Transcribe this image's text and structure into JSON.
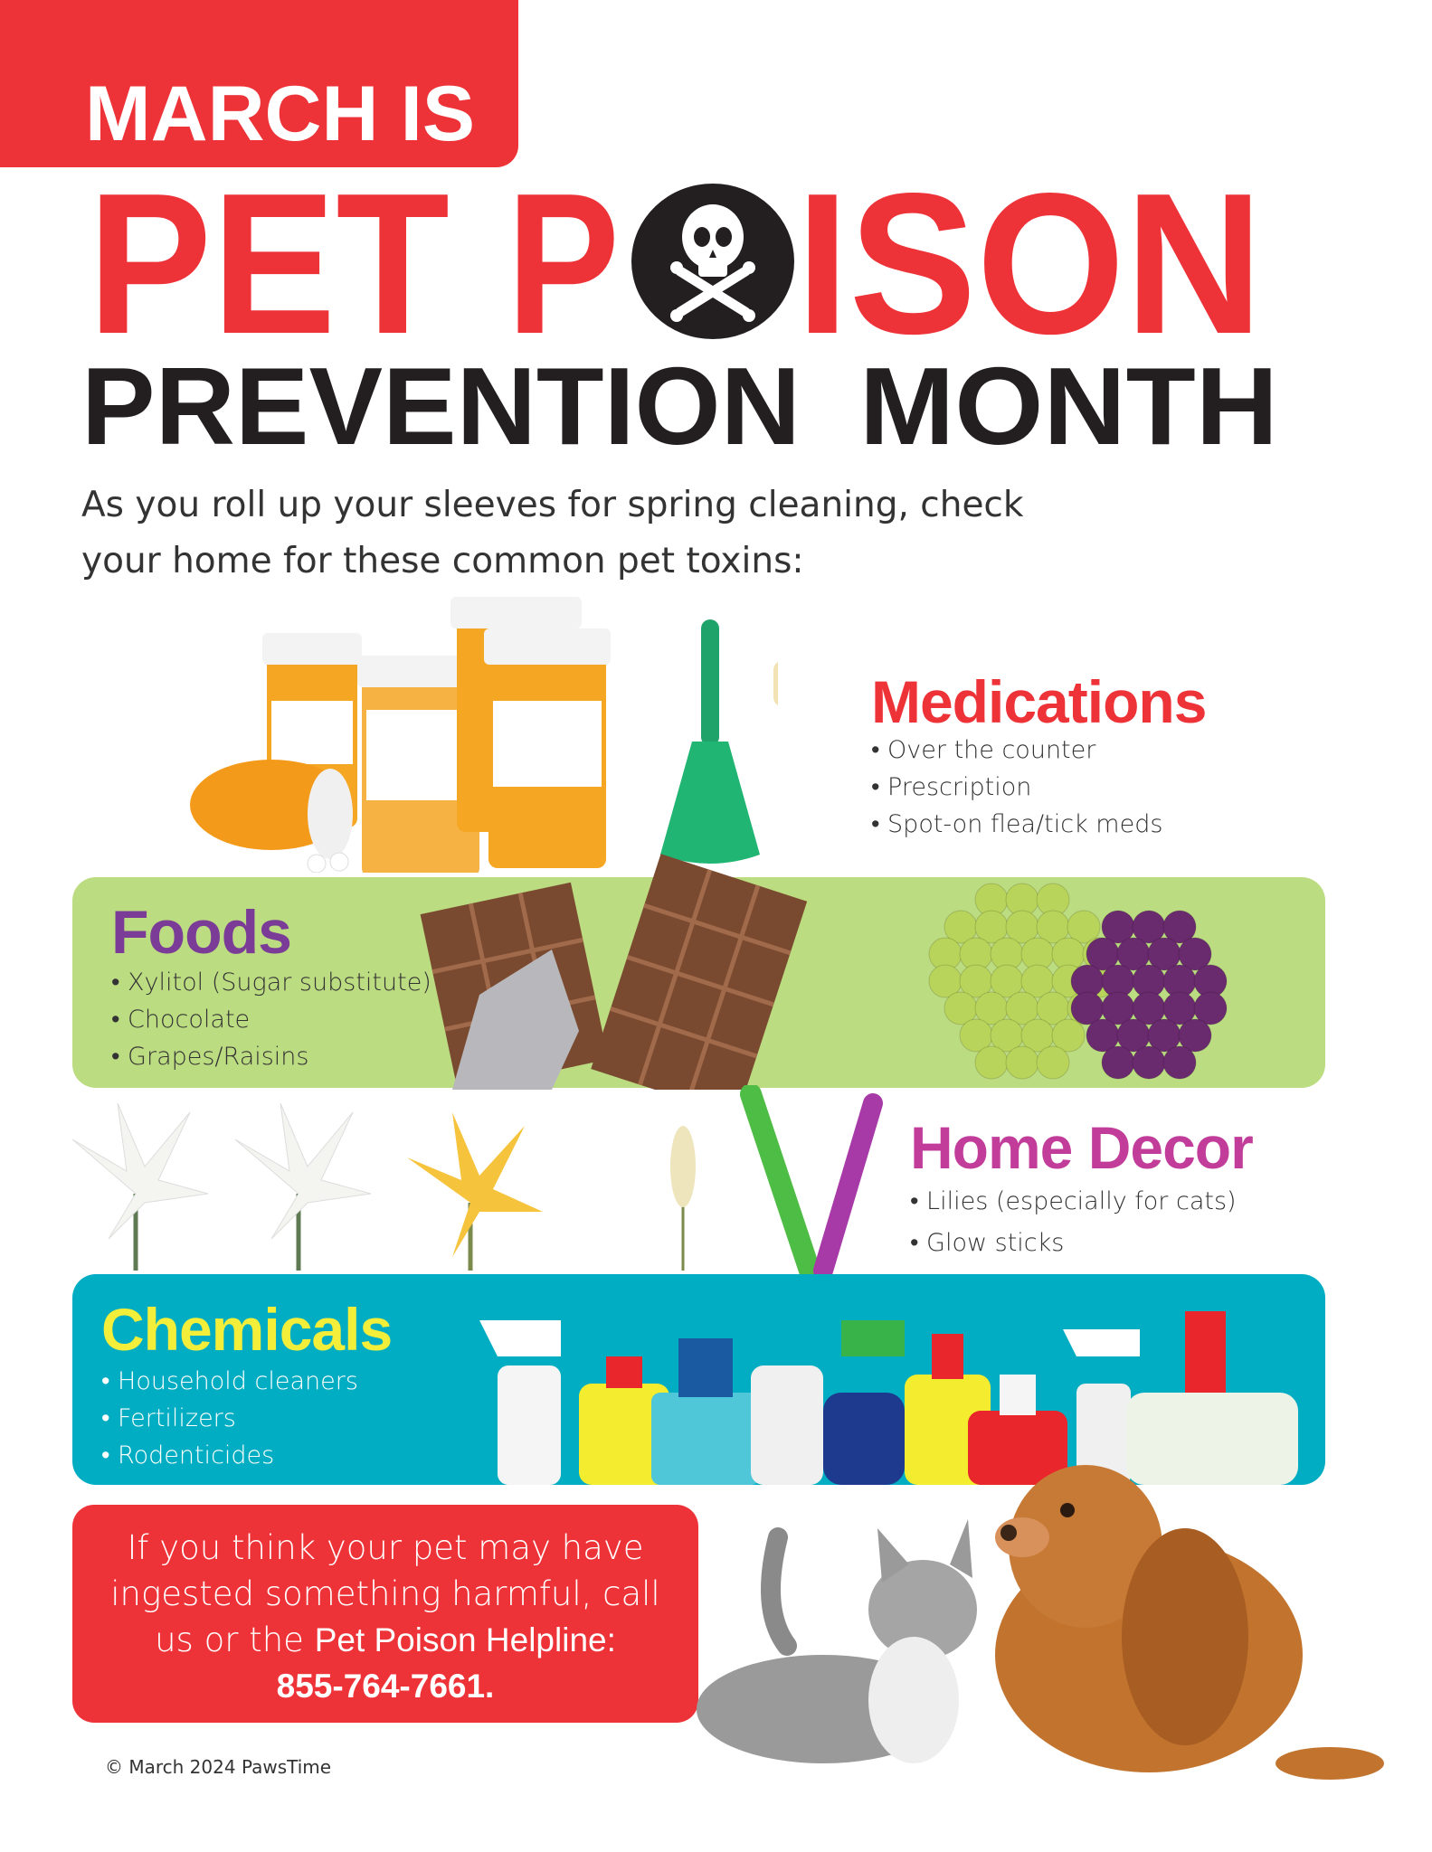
{
  "header": {
    "kicker": "MARCH IS",
    "title_word1": "PET",
    "title_word2_prefix": "P",
    "title_word2_suffix": "ISON",
    "subtitle_word1": "PREVENTION",
    "subtitle_word2": "MONTH",
    "skull_icon": "skull-crossbones-icon"
  },
  "intro": {
    "line1": "As you roll up your sleeves for spring cleaning, check",
    "line2": "your home for these common pet toxins:"
  },
  "categories": {
    "medications": {
      "title": "Medications",
      "items": [
        "Over the counter",
        "Prescription",
        "Spot-on flea/tick meds"
      ],
      "color": "#ee3338"
    },
    "foods": {
      "title": "Foods",
      "items": [
        "Xylitol (Sugar substitute)",
        "Chocolate",
        "Grapes/Raisins"
      ],
      "color": "#7b3c98",
      "band_color": "#bcdc82"
    },
    "home_decor": {
      "title": "Home Decor",
      "items": [
        "Lilies (especially for cats)",
        "Glow sticks"
      ],
      "color": "#c23c9a"
    },
    "chemicals": {
      "title": "Chemicals",
      "items": [
        "Household cleaners",
        "Fertilizers",
        "Rodenticides"
      ],
      "color": "#f2ee3a",
      "band_color": "#00adc2"
    }
  },
  "helpline": {
    "line1": "If you think your pet may have",
    "line2": "ingested something harmful, call",
    "line3_prefix": "us or the ",
    "line3_bold": "Pet Poison Helpline:",
    "phone": "855-764-7661."
  },
  "footer": {
    "copyright": "© March 2024 PawsTime"
  },
  "colors": {
    "red": "#ee3338",
    "dark": "#231f20"
  }
}
